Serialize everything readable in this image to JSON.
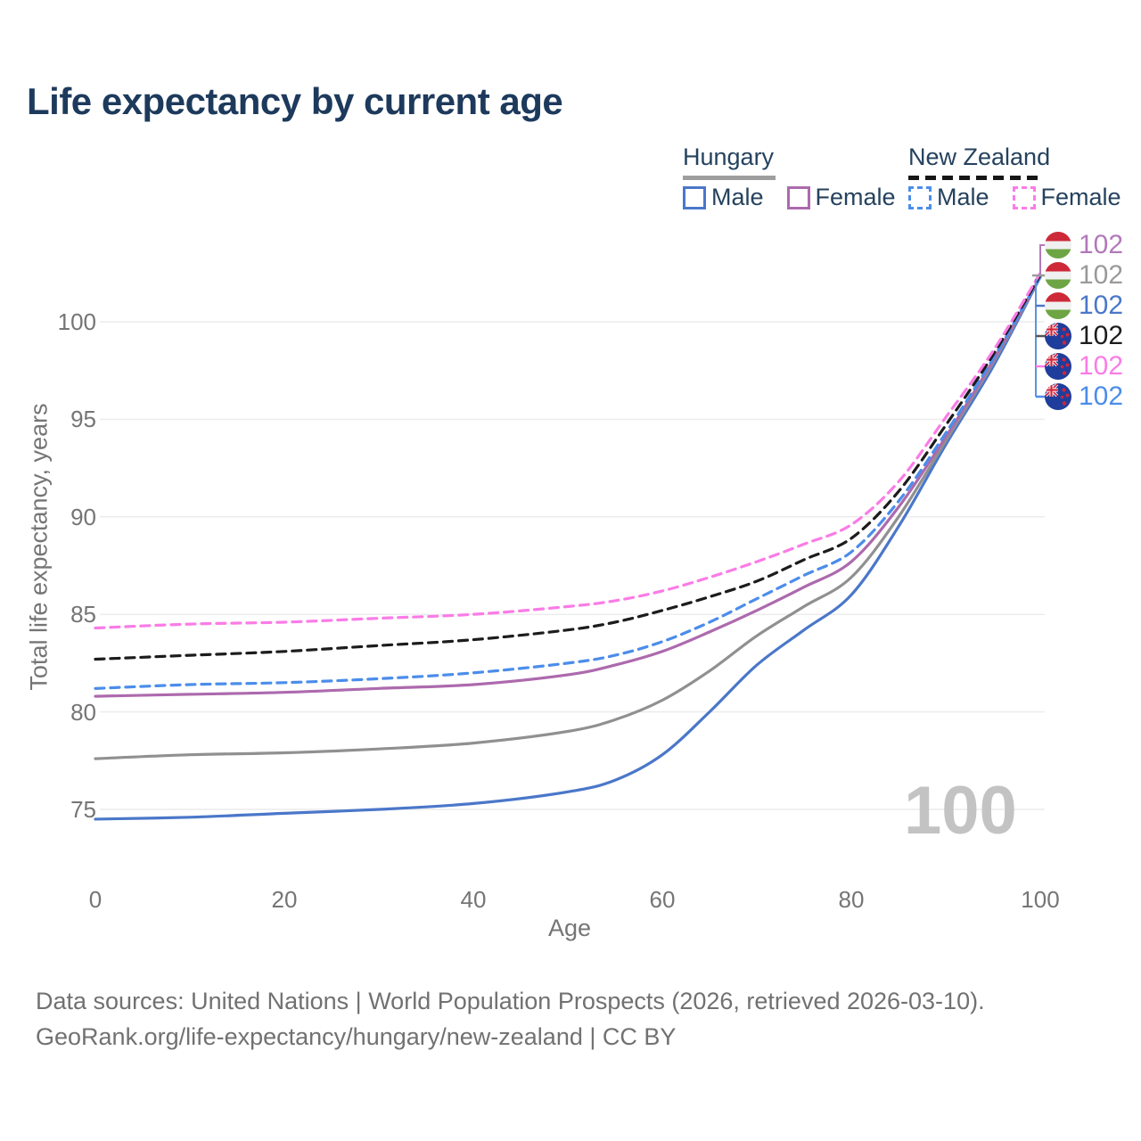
{
  "title": "Life expectancy by current age",
  "legend": {
    "groups": [
      {
        "label": "Hungary",
        "line_style": "solid",
        "line_color": "#9e9e9e",
        "items": [
          {
            "label": "Male",
            "swatch_style": "solid",
            "color": "#4a77c9"
          },
          {
            "label": "Female",
            "swatch_style": "solid",
            "color": "#ad6aad"
          }
        ]
      },
      {
        "label": "New Zealand",
        "line_style": "dashed",
        "line_color": "#161616",
        "items": [
          {
            "label": "Male",
            "swatch_style": "dashed",
            "color": "#4b8dea"
          },
          {
            "label": "Female",
            "swatch_style": "dashed",
            "color": "#fa7ce6"
          }
        ]
      }
    ]
  },
  "chart_data": {
    "type": "line",
    "title": "Life expectancy by current age",
    "xlabel": "Age",
    "ylabel": "Total life expectancy, years",
    "xlim": [
      0,
      100
    ],
    "ylim": [
      72.5,
      103.5
    ],
    "x_ticks": [
      0,
      20,
      40,
      60,
      80,
      100
    ],
    "y_ticks": [
      100,
      95,
      90,
      85,
      80,
      75
    ],
    "grid": "horizontal",
    "legend_position": "top-right",
    "x": [
      0,
      10,
      20,
      30,
      40,
      50,
      55,
      60,
      65,
      70,
      75,
      80,
      85,
      90,
      95,
      100
    ],
    "series": [
      {
        "name": "Hungary Male",
        "country": "Hungary",
        "sex": "Male",
        "color": "#4a77c9",
        "dash": "solid",
        "values": [
          74.5,
          74.6,
          74.8,
          75.0,
          75.3,
          75.9,
          76.5,
          77.8,
          80.0,
          82.4,
          84.2,
          86.0,
          89.5,
          93.7,
          97.7,
          102.3
        ]
      },
      {
        "name": "Hungary Total",
        "country": "Hungary",
        "sex": "Both",
        "color": "#909090",
        "dash": "solid",
        "values": [
          77.6,
          77.8,
          77.9,
          78.1,
          78.4,
          79.0,
          79.6,
          80.6,
          82.1,
          83.9,
          85.4,
          86.9,
          90.0,
          93.9,
          97.9,
          102.3
        ]
      },
      {
        "name": "Hungary Female",
        "country": "Hungary",
        "sex": "Female",
        "color": "#ad6aad",
        "dash": "solid",
        "values": [
          80.8,
          80.9,
          81.0,
          81.2,
          81.4,
          81.9,
          82.4,
          83.1,
          84.1,
          85.2,
          86.4,
          87.7,
          90.5,
          94.1,
          98.0,
          102.3
        ]
      },
      {
        "name": "New Zealand Male",
        "country": "New Zealand",
        "sex": "Male",
        "color": "#4b8dea",
        "dash": "dashed",
        "values": [
          81.2,
          81.4,
          81.5,
          81.7,
          82.0,
          82.5,
          82.9,
          83.6,
          84.6,
          85.8,
          87.0,
          88.2,
          90.8,
          94.3,
          98.1,
          102.3
        ]
      },
      {
        "name": "New Zealand Total",
        "country": "New Zealand",
        "sex": "Both",
        "color": "#1c1c1c",
        "dash": "dashed",
        "values": [
          82.7,
          82.9,
          83.1,
          83.4,
          83.7,
          84.2,
          84.6,
          85.2,
          85.9,
          86.7,
          87.8,
          88.9,
          91.3,
          94.7,
          98.3,
          102.4
        ]
      },
      {
        "name": "New Zealand Female",
        "country": "New Zealand",
        "sex": "Female",
        "color": "#fa7ce6",
        "dash": "dashed",
        "values": [
          84.3,
          84.5,
          84.6,
          84.8,
          85.0,
          85.4,
          85.7,
          86.2,
          86.9,
          87.7,
          88.6,
          89.6,
          91.8,
          95.1,
          98.5,
          102.5
        ]
      }
    ],
    "end_labels": [
      {
        "country": "Hungary",
        "series": "Female",
        "value": "102",
        "color": "#b279b9"
      },
      {
        "country": "Hungary",
        "series": "Total",
        "value": "102",
        "color": "#9a9a9a"
      },
      {
        "country": "Hungary",
        "series": "Male",
        "value": "102",
        "color": "#4a77c9"
      },
      {
        "country": "New Zealand",
        "series": "Total",
        "value": "102",
        "color": "#1c1c1c"
      },
      {
        "country": "New Zealand",
        "series": "Female",
        "value": "102",
        "color": "#fa7ce6"
      },
      {
        "country": "New Zealand",
        "series": "Male",
        "value": "102",
        "color": "#4b8dea"
      }
    ],
    "watermark": "100"
  },
  "footer": {
    "line1": "Data sources: United Nations | World Population Prospects (2026, retrieved 2026-03-10).",
    "line2": "GeoRank.org/life-expectancy/hungary/new-zealand | CC BY"
  }
}
